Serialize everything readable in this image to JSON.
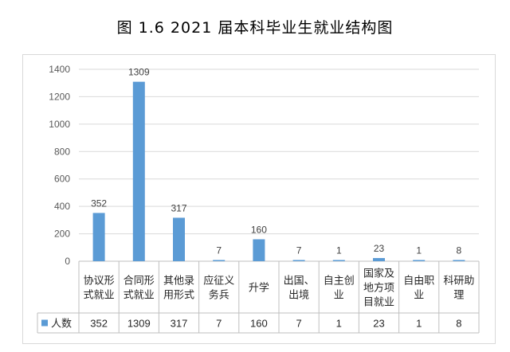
{
  "title": "图 1.6    2021 届本科毕业生就业结构图",
  "chart_data": {
    "type": "bar",
    "title": "图 1.6    2021 届本科毕业生就业结构图",
    "categories": [
      [
        "协议形",
        "式就业"
      ],
      [
        "合同形",
        "式就业"
      ],
      [
        "其他录",
        "用形式"
      ],
      [
        "应征义",
        "务兵"
      ],
      [
        "升学"
      ],
      [
        "出国、",
        "出境"
      ],
      [
        "自主创",
        "业"
      ],
      [
        "国家及",
        "地方项",
        "目就业"
      ],
      [
        "自由职",
        "业"
      ],
      [
        "科研助",
        "理"
      ]
    ],
    "series": [
      {
        "name": "人数",
        "values": [
          352,
          1309,
          317,
          7,
          160,
          7,
          1,
          23,
          1,
          8
        ]
      }
    ],
    "ylim": [
      0,
      1400
    ],
    "yticks": [
      0,
      200,
      400,
      600,
      800,
      1000,
      1200,
      1400
    ],
    "grid": true,
    "legend": "data-table",
    "colors": {
      "bar": "#5b9bd5",
      "grid": "#d9d9d9",
      "axis": "#bfbfbf"
    }
  }
}
